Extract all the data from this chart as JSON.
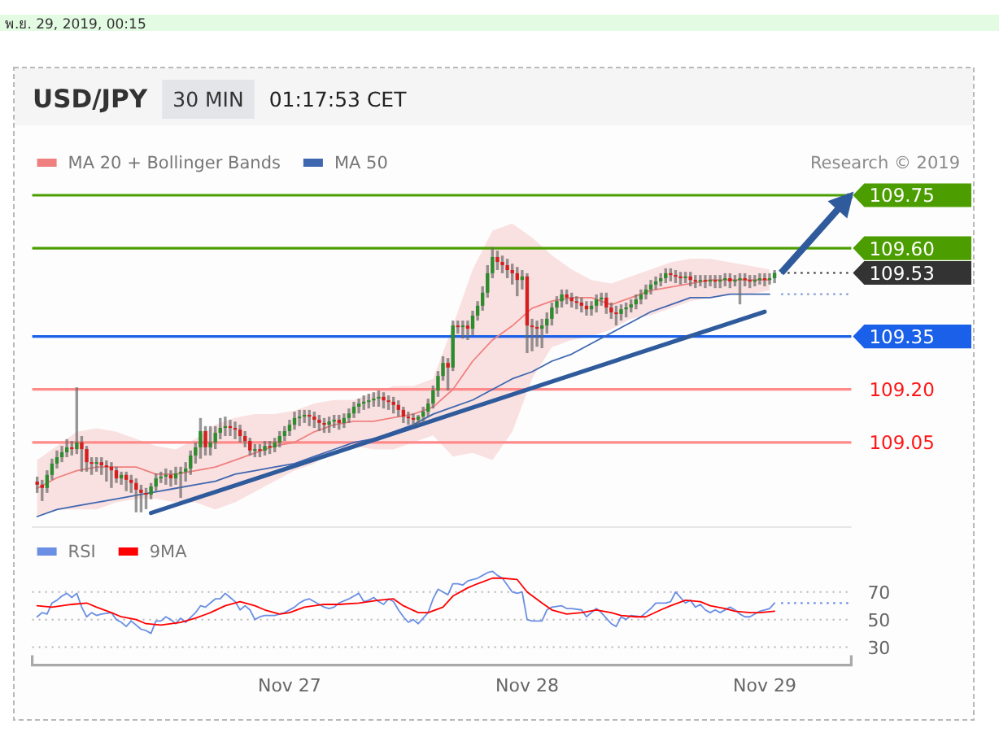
{
  "chart_data": [
    {
      "type": "candlestick",
      "title": "USD/JPY",
      "subtitle": "30 MIN",
      "annotations": [
        "01:17:53 CET",
        "Research © 2019",
        "พ.ย. 29, 2019, 00:15"
      ],
      "x": [
        "2019-11-25T22:30",
        "2019-11-25T23:00",
        "2019-11-25T23:30",
        "2019-11-26T00:00",
        "2019-11-26T00:30",
        "2019-11-26T01:00",
        "2019-11-26T01:30",
        "2019-11-26T02:00",
        "2019-11-26T02:30",
        "2019-11-26T03:00",
        "2019-11-26T03:30",
        "2019-11-26T04:00",
        "2019-11-26T04:30",
        "2019-11-26T05:00",
        "2019-11-26T05:30",
        "2019-11-26T06:00",
        "2019-11-26T06:30",
        "2019-11-26T07:00",
        "2019-11-26T07:30",
        "2019-11-26T08:00",
        "2019-11-26T08:30",
        "2019-11-26T09:00",
        "2019-11-26T09:30",
        "2019-11-26T10:00",
        "2019-11-26T10:30",
        "2019-11-26T11:00",
        "2019-11-26T11:30",
        "2019-11-26T12:00",
        "2019-11-26T12:30",
        "2019-11-26T13:00",
        "2019-11-26T13:30",
        "2019-11-26T14:00",
        "2019-11-26T14:30",
        "2019-11-26T15:00",
        "2019-11-26T15:30",
        "2019-11-26T16:00",
        "2019-11-26T16:30",
        "2019-11-26T17:00",
        "2019-11-26T17:30",
        "2019-11-26T18:00",
        "2019-11-26T18:30",
        "2019-11-26T19:00",
        "2019-11-26T19:30",
        "2019-11-26T20:00",
        "2019-11-26T20:30",
        "2019-11-26T21:00",
        "2019-11-26T21:30",
        "2019-11-26T22:00",
        "2019-11-26T22:30",
        "2019-11-26T23:00",
        "2019-11-26T23:30",
        "2019-11-27T00:00",
        "2019-11-27T00:30",
        "2019-11-27T01:00",
        "2019-11-27T01:30",
        "2019-11-27T02:00",
        "2019-11-27T02:30",
        "2019-11-27T03:00",
        "2019-11-27T03:30",
        "2019-11-27T04:00",
        "2019-11-27T04:30",
        "2019-11-27T05:00",
        "2019-11-27T05:30",
        "2019-11-27T06:00",
        "2019-11-27T06:30",
        "2019-11-27T07:00",
        "2019-11-27T07:30",
        "2019-11-27T08:00",
        "2019-11-27T08:30",
        "2019-11-27T09:00",
        "2019-11-27T09:30",
        "2019-11-27T10:00",
        "2019-11-27T10:30",
        "2019-11-27T11:00",
        "2019-11-27T11:30",
        "2019-11-27T12:00",
        "2019-11-27T12:30",
        "2019-11-27T13:00",
        "2019-11-27T13:30",
        "2019-11-27T14:00",
        "2019-11-27T14:30",
        "2019-11-27T15:00",
        "2019-11-27T15:30",
        "2019-11-27T16:00",
        "2019-11-27T16:30",
        "2019-11-27T17:00",
        "2019-11-27T17:30",
        "2019-11-27T18:00",
        "2019-11-27T18:30",
        "2019-11-27T19:00",
        "2019-11-27T19:30",
        "2019-11-27T20:00",
        "2019-11-27T20:30",
        "2019-11-27T21:00",
        "2019-11-27T21:30",
        "2019-11-27T22:00",
        "2019-11-27T22:30",
        "2019-11-27T23:00",
        "2019-11-27T23:30",
        "2019-11-28T00:00",
        "2019-11-28T00:30",
        "2019-11-28T01:00",
        "2019-11-28T01:30",
        "2019-11-28T02:00",
        "2019-11-28T02:30",
        "2019-11-28T03:00",
        "2019-11-28T03:30",
        "2019-11-28T04:00",
        "2019-11-28T04:30",
        "2019-11-28T05:00",
        "2019-11-28T05:30",
        "2019-11-28T06:00",
        "2019-11-28T06:30",
        "2019-11-28T07:00",
        "2019-11-28T07:30",
        "2019-11-28T08:00",
        "2019-11-28T08:30",
        "2019-11-28T09:00",
        "2019-11-28T09:30",
        "2019-11-28T10:00",
        "2019-11-28T10:30",
        "2019-11-28T11:00",
        "2019-11-28T11:30",
        "2019-11-28T12:00",
        "2019-11-28T12:30",
        "2019-11-28T13:00",
        "2019-11-28T13:30",
        "2019-11-28T14:00",
        "2019-11-28T14:30",
        "2019-11-28T15:00",
        "2019-11-28T15:30",
        "2019-11-28T16:00",
        "2019-11-28T16:30",
        "2019-11-28T17:00",
        "2019-11-28T17:30",
        "2019-11-28T18:00",
        "2019-11-28T18:30",
        "2019-11-28T19:00",
        "2019-11-28T19:30",
        "2019-11-28T20:00",
        "2019-11-28T20:30",
        "2019-11-28T21:00",
        "2019-11-28T21:30",
        "2019-11-28T22:00",
        "2019-11-28T22:30",
        "2019-11-28T23:00",
        "2019-11-28T23:30",
        "2019-11-29T00:00",
        "2019-11-29T00:30",
        "2019-11-29T01:00"
      ],
      "ohlc": [
        [
          108.939,
          108.953,
          108.907,
          108.93
        ],
        [
          108.93,
          108.944,
          108.884,
          108.921
        ],
        [
          108.921,
          108.971,
          108.907,
          108.958
        ],
        [
          108.958,
          109.004,
          108.944,
          108.99
        ],
        [
          108.99,
          109.027,
          108.976,
          109.008
        ],
        [
          109.008,
          109.04,
          108.994,
          109.022
        ],
        [
          109.022,
          109.059,
          109.008,
          109.036
        ],
        [
          109.036,
          109.054,
          109.013,
          109.031
        ],
        [
          109.031,
          109.206,
          109.017,
          109.05
        ],
        [
          109.05,
          109.068,
          108.967,
          109.031
        ],
        [
          109.031,
          109.04,
          108.967,
          108.994
        ],
        [
          108.994,
          109.008,
          108.958,
          108.99
        ],
        [
          108.99,
          109.008,
          108.967,
          108.994
        ],
        [
          108.994,
          109.008,
          108.958,
          108.985
        ],
        [
          108.985,
          108.999,
          108.939,
          108.981
        ],
        [
          108.981,
          108.994,
          108.921,
          108.971
        ],
        [
          108.971,
          108.981,
          108.935,
          108.948
        ],
        [
          108.948,
          108.967,
          108.93,
          108.958
        ],
        [
          108.958,
          108.967,
          108.912,
          108.944
        ],
        [
          108.944,
          108.958,
          108.907,
          108.935
        ],
        [
          108.935,
          108.948,
          108.852,
          108.916
        ],
        [
          108.916,
          108.93,
          108.852,
          108.907
        ],
        [
          108.907,
          108.921,
          108.861,
          108.902
        ],
        [
          108.902,
          108.935,
          108.889,
          108.925
        ],
        [
          108.925,
          108.962,
          108.912,
          108.948
        ],
        [
          108.948,
          108.967,
          108.935,
          108.953
        ],
        [
          108.953,
          108.976,
          108.93,
          108.958
        ],
        [
          108.958,
          108.971,
          108.925,
          108.948
        ],
        [
          108.948,
          108.981,
          108.93,
          108.962
        ],
        [
          108.962,
          108.981,
          108.893,
          108.967
        ],
        [
          108.967,
          108.994,
          108.939,
          108.976
        ],
        [
          108.976,
          109.027,
          108.958,
          109.013
        ],
        [
          109.013,
          109.05,
          108.99,
          109.036
        ],
        [
          109.036,
          109.119,
          109.004,
          109.082
        ],
        [
          109.082,
          109.096,
          109.013,
          109.036
        ],
        [
          109.036,
          109.096,
          109.013,
          109.05
        ],
        [
          109.05,
          109.096,
          109.031,
          109.077
        ],
        [
          109.077,
          109.119,
          109.059,
          109.091
        ],
        [
          109.091,
          109.123,
          109.068,
          109.096
        ],
        [
          109.096,
          109.114,
          109.068,
          109.091
        ],
        [
          109.091,
          109.109,
          109.059,
          109.086
        ],
        [
          109.086,
          109.1,
          109.05,
          109.068
        ],
        [
          109.068,
          109.082,
          109.036,
          109.054
        ],
        [
          109.054,
          109.063,
          109.013,
          109.027
        ],
        [
          109.027,
          109.045,
          109.008,
          109.031
        ],
        [
          109.031,
          109.045,
          109.008,
          109.027
        ],
        [
          109.027,
          109.054,
          109.013,
          109.04
        ],
        [
          109.04,
          109.054,
          109.017,
          109.036
        ],
        [
          109.036,
          109.063,
          109.022,
          109.05
        ],
        [
          109.05,
          109.082,
          109.036,
          109.068
        ],
        [
          109.068,
          109.096,
          109.054,
          109.082
        ],
        [
          109.082,
          109.114,
          109.068,
          109.1
        ],
        [
          109.1,
          109.137,
          109.086,
          109.119
        ],
        [
          109.119,
          109.142,
          109.096,
          109.123
        ],
        [
          109.123,
          109.142,
          109.105,
          109.128
        ],
        [
          109.128,
          109.142,
          109.096,
          109.123
        ],
        [
          109.123,
          109.137,
          109.091,
          109.114
        ],
        [
          109.114,
          109.128,
          109.082,
          109.105
        ],
        [
          109.105,
          109.119,
          109.077,
          109.1
        ],
        [
          109.1,
          109.123,
          109.077,
          109.109
        ],
        [
          109.109,
          109.128,
          109.091,
          109.114
        ],
        [
          109.114,
          109.128,
          109.086,
          109.105
        ],
        [
          109.105,
          109.132,
          109.091,
          109.119
        ],
        [
          109.119,
          109.146,
          109.105,
          109.132
        ],
        [
          109.132,
          109.165,
          109.119,
          109.151
        ],
        [
          109.151,
          109.174,
          109.132,
          109.16
        ],
        [
          109.16,
          109.183,
          109.142,
          109.165
        ],
        [
          109.165,
          109.188,
          109.146,
          109.169
        ],
        [
          109.169,
          109.192,
          109.151,
          109.174
        ],
        [
          109.174,
          109.197,
          109.151,
          109.179
        ],
        [
          109.179,
          109.192,
          109.146,
          109.169
        ],
        [
          109.169,
          109.183,
          109.142,
          109.165
        ],
        [
          109.165,
          109.179,
          109.132,
          109.156
        ],
        [
          109.156,
          109.169,
          109.123,
          109.142
        ],
        [
          109.142,
          109.151,
          109.105,
          109.123
        ],
        [
          109.123,
          109.137,
          109.1,
          109.119
        ],
        [
          109.119,
          109.132,
          109.096,
          109.114
        ],
        [
          109.114,
          109.128,
          109.1,
          109.123
        ],
        [
          109.123,
          109.151,
          109.109,
          109.137
        ],
        [
          109.137,
          109.174,
          109.123,
          109.16
        ],
        [
          109.16,
          109.211,
          109.146,
          109.197
        ],
        [
          109.197,
          109.252,
          109.179,
          109.238
        ],
        [
          109.238,
          109.294,
          109.225,
          109.275
        ],
        [
          109.275,
          109.289,
          109.197,
          109.262
        ],
        [
          109.262,
          109.395,
          109.252,
          109.381
        ],
        [
          109.381,
          109.395,
          109.358,
          109.377
        ],
        [
          109.377,
          109.395,
          109.344,
          109.381
        ],
        [
          109.381,
          109.395,
          109.34,
          109.372
        ],
        [
          109.372,
          109.423,
          109.354,
          109.409
        ],
        [
          109.409,
          109.45,
          109.395,
          109.437
        ],
        [
          109.437,
          109.492,
          109.423,
          109.474
        ],
        [
          109.474,
          109.552,
          109.46,
          109.529
        ],
        [
          109.529,
          109.603,
          109.515,
          109.575
        ],
        [
          109.575,
          109.593,
          109.538,
          109.561
        ],
        [
          109.561,
          109.579,
          109.529,
          109.552
        ],
        [
          109.552,
          109.57,
          109.515,
          109.538
        ],
        [
          109.538,
          109.556,
          109.497,
          109.529
        ],
        [
          109.529,
          109.547,
          109.464,
          109.51
        ],
        [
          109.51,
          109.538,
          109.483,
          109.52
        ],
        [
          109.52,
          109.529,
          109.303,
          109.381
        ],
        [
          109.381,
          109.4,
          109.308,
          109.377
        ],
        [
          109.377,
          109.395,
          109.321,
          109.372
        ],
        [
          109.372,
          109.4,
          109.317,
          109.381
        ],
        [
          109.381,
          109.418,
          109.358,
          109.4
        ],
        [
          109.4,
          109.446,
          109.381,
          109.432
        ],
        [
          109.432,
          109.464,
          109.414,
          109.45
        ],
        [
          109.45,
          109.483,
          109.432,
          109.469
        ],
        [
          109.469,
          109.483,
          109.441,
          109.46
        ],
        [
          109.46,
          109.474,
          109.432,
          109.45
        ],
        [
          109.45,
          109.464,
          109.427,
          109.446
        ],
        [
          109.446,
          109.46,
          109.418,
          109.437
        ],
        [
          109.437,
          109.45,
          109.409,
          109.427
        ],
        [
          109.427,
          109.45,
          109.409,
          109.437
        ],
        [
          109.437,
          109.469,
          109.418,
          109.455
        ],
        [
          109.455,
          109.474,
          109.437,
          109.46
        ],
        [
          109.46,
          109.474,
          109.414,
          109.432
        ],
        [
          109.432,
          109.446,
          109.4,
          109.418
        ],
        [
          109.418,
          109.437,
          109.381,
          109.414
        ],
        [
          109.414,
          109.441,
          109.395,
          109.427
        ],
        [
          109.427,
          109.446,
          109.404,
          109.432
        ],
        [
          109.432,
          109.455,
          109.418,
          109.441
        ],
        [
          109.441,
          109.469,
          109.427,
          109.455
        ],
        [
          109.455,
          109.483,
          109.441,
          109.469
        ],
        [
          109.469,
          109.497,
          109.455,
          109.483
        ],
        [
          109.483,
          109.51,
          109.469,
          109.497
        ],
        [
          109.497,
          109.52,
          109.483,
          109.506
        ],
        [
          109.506,
          109.529,
          109.492,
          109.515
        ],
        [
          109.515,
          109.543,
          109.501,
          109.529
        ],
        [
          109.529,
          109.543,
          109.506,
          109.524
        ],
        [
          109.524,
          109.538,
          109.501,
          109.52
        ],
        [
          109.52,
          109.533,
          109.497,
          109.515
        ],
        [
          109.515,
          109.533,
          109.501,
          109.52
        ],
        [
          109.52,
          109.533,
          109.492,
          109.51
        ],
        [
          109.51,
          109.524,
          109.487,
          109.506
        ],
        [
          109.506,
          109.524,
          109.492,
          109.51
        ],
        [
          109.51,
          109.524,
          109.487,
          109.506
        ],
        [
          109.506,
          109.524,
          109.492,
          109.51
        ],
        [
          109.51,
          109.524,
          109.487,
          109.506
        ],
        [
          109.506,
          109.524,
          109.487,
          109.51
        ],
        [
          109.51,
          109.529,
          109.492,
          109.515
        ],
        [
          109.515,
          109.529,
          109.487,
          109.506
        ],
        [
          109.506,
          109.524,
          109.492,
          109.51
        ],
        [
          109.51,
          109.529,
          109.441,
          109.515
        ],
        [
          109.515,
          109.529,
          109.492,
          109.51
        ],
        [
          109.51,
          109.524,
          109.487,
          109.506
        ],
        [
          109.506,
          109.524,
          109.492,
          109.51
        ],
        [
          109.51,
          109.529,
          109.497,
          109.515
        ],
        [
          109.515,
          109.529,
          109.492,
          109.51
        ],
        [
          109.51,
          109.529,
          109.497,
          109.515
        ],
        [
          109.515,
          109.538,
          109.501,
          109.53
        ]
      ],
      "xlim": [
        "2019-11-25T22:00",
        "2019-11-29T08:45"
      ],
      "ylim": [
        108.81,
        109.75
      ],
      "series": [
        {
          "type": "line",
          "name": "MA 20 + Bollinger Bands",
          "color": "#f08080",
          "x": [
            "2019-11-25T22:30",
            "2019-11-26T00:30",
            "2019-11-26T02:30",
            "2019-11-26T04:30",
            "2019-11-26T06:30",
            "2019-11-26T08:30",
            "2019-11-26T10:30",
            "2019-11-26T12:30",
            "2019-11-26T14:30",
            "2019-11-26T16:30",
            "2019-11-26T18:30",
            "2019-11-26T20:30",
            "2019-11-26T22:30",
            "2019-11-27T00:30",
            "2019-11-27T02:30",
            "2019-11-27T04:30",
            "2019-11-27T06:30",
            "2019-11-27T08:30",
            "2019-11-27T10:30",
            "2019-11-27T12:30",
            "2019-11-27T14:30",
            "2019-11-27T16:30",
            "2019-11-27T18:30",
            "2019-11-27T20:30",
            "2019-11-27T22:30",
            "2019-11-28T00:30",
            "2019-11-28T02:30",
            "2019-11-28T04:30",
            "2019-11-28T06:30",
            "2019-11-28T08:30",
            "2019-11-28T10:30",
            "2019-11-28T12:30",
            "2019-11-28T14:30",
            "2019-11-28T16:30",
            "2019-11-28T18:30",
            "2019-11-28T20:30",
            "2019-11-28T22:30",
            "2019-11-29T00:30"
          ],
          "values": [
            108.92,
            108.95,
            108.97,
            108.98,
            108.98,
            108.98,
            108.96,
            108.96,
            108.97,
            108.98,
            109.0,
            109.02,
            109.04,
            109.05,
            109.08,
            109.1,
            109.11,
            109.11,
            109.12,
            109.13,
            109.15,
            109.2,
            109.28,
            109.34,
            109.38,
            109.43,
            109.45,
            109.46,
            109.46,
            109.44,
            109.46,
            109.48,
            109.49,
            109.5,
            109.51,
            109.51,
            109.51,
            109.51
          ],
          "upper": [
            109.0,
            109.04,
            109.08,
            109.09,
            109.08,
            109.06,
            109.04,
            109.03,
            109.06,
            109.1,
            109.12,
            109.13,
            109.13,
            109.14,
            109.16,
            109.17,
            109.17,
            109.19,
            109.21,
            109.21,
            109.23,
            109.38,
            109.54,
            109.65,
            109.67,
            109.63,
            109.58,
            109.54,
            109.51,
            109.5,
            109.52,
            109.54,
            109.56,
            109.57,
            109.57,
            109.56,
            109.55,
            109.54
          ],
          "lower": [
            108.84,
            108.86,
            108.86,
            108.86,
            108.88,
            108.89,
            108.89,
            108.88,
            108.88,
            108.86,
            108.88,
            108.91,
            108.94,
            108.97,
            108.99,
            109.03,
            109.04,
            109.03,
            109.03,
            109.05,
            109.07,
            109.01,
            109.02,
            109.0,
            109.08,
            109.23,
            109.32,
            109.34,
            109.35,
            109.37,
            109.4,
            109.41,
            109.43,
            109.45,
            109.46,
            109.47,
            109.47,
            109.48
          ]
        },
        {
          "type": "line",
          "name": "MA 50",
          "color": "#3f67b0",
          "x": [
            "2019-11-25T22:30",
            "2019-11-26T00:30",
            "2019-11-26T02:30",
            "2019-11-26T04:30",
            "2019-11-26T06:30",
            "2019-11-26T08:30",
            "2019-11-26T10:30",
            "2019-11-26T12:30",
            "2019-11-26T14:30",
            "2019-11-26T16:30",
            "2019-11-26T18:30",
            "2019-11-26T20:30",
            "2019-11-26T22:30",
            "2019-11-27T00:30",
            "2019-11-27T02:30",
            "2019-11-27T04:30",
            "2019-11-27T06:30",
            "2019-11-27T08:30",
            "2019-11-27T10:30",
            "2019-11-27T12:30",
            "2019-11-27T14:30",
            "2019-11-27T16:30",
            "2019-11-27T18:30",
            "2019-11-27T20:30",
            "2019-11-27T22:30",
            "2019-11-28T00:30",
            "2019-11-28T02:30",
            "2019-11-28T04:30",
            "2019-11-28T06:30",
            "2019-11-28T08:30",
            "2019-11-28T10:30",
            "2019-11-28T12:30",
            "2019-11-28T14:30",
            "2019-11-28T16:30",
            "2019-11-28T18:30",
            "2019-11-28T20:30",
            "2019-11-28T22:30",
            "2019-11-29T00:30"
          ],
          "values": [
            108.84,
            108.86,
            108.87,
            108.88,
            108.89,
            108.9,
            108.91,
            108.92,
            108.93,
            108.94,
            108.96,
            108.97,
            108.98,
            108.99,
            109.01,
            109.03,
            109.05,
            109.06,
            109.08,
            109.1,
            109.13,
            109.15,
            109.17,
            109.2,
            109.23,
            109.25,
            109.28,
            109.3,
            109.33,
            109.36,
            109.39,
            109.42,
            109.44,
            109.46,
            109.46,
            109.47,
            109.47,
            109.47
          ]
        },
        {
          "type": "line",
          "color": "#2f5b9c",
          "x": [
            "2019-11-26T10:00",
            "2019-11-29T00:00"
          ],
          "values": [
            108.85,
            109.42
          ]
        },
        {
          "type": "line",
          "color": "#2f5b9c",
          "x": [
            "2019-11-29T01:40",
            "2019-11-29T08:40"
          ],
          "values": [
            109.53,
            109.75
          ]
        }
      ],
      "ref_lines": [
        {
          "axis": "y",
          "value": 109.75,
          "label": "109.75",
          "color": "#4c9e00"
        },
        {
          "axis": "y",
          "value": 109.6,
          "label": "109.60",
          "color": "#4c9e00"
        },
        {
          "axis": "y",
          "value": 109.53,
          "label": "109.53",
          "color": "#333333",
          "line_style": "dotted"
        },
        {
          "axis": "y",
          "value": 109.47,
          "color": "#7f9bd6",
          "line_style": "dotted"
        },
        {
          "axis": "y",
          "value": 109.35,
          "label": "109.35",
          "color": "#1a60e8"
        },
        {
          "axis": "y",
          "value": 109.2,
          "label": "109.20",
          "color": "#ff8a8a"
        },
        {
          "axis": "y",
          "value": 109.05,
          "label": "109.05",
          "color": "#ff8a8a"
        }
      ],
      "legend": "top left"
    },
    {
      "type": "line",
      "series": [
        {
          "name": "RSI",
          "color": "#6b8fe3",
          "x": [
            "2019-11-25T22:30",
            "2019-11-25T23:00",
            "2019-11-25T23:30",
            "2019-11-26T00:00",
            "2019-11-26T00:30",
            "2019-11-26T01:00",
            "2019-11-26T01:30",
            "2019-11-26T02:00",
            "2019-11-26T02:30",
            "2019-11-26T03:00",
            "2019-11-26T03:30",
            "2019-11-26T04:00",
            "2019-11-26T04:30",
            "2019-11-26T05:00",
            "2019-11-26T06:00",
            "2019-11-26T06:30",
            "2019-11-26T07:00",
            "2019-11-26T07:30",
            "2019-11-26T08:00",
            "2019-11-26T09:00",
            "2019-11-26T09:30",
            "2019-11-26T10:00",
            "2019-11-26T10:30",
            "2019-11-26T11:00",
            "2019-11-26T11:30",
            "2019-11-26T12:00",
            "2019-11-26T12:30",
            "2019-11-26T13:00",
            "2019-11-26T13:30",
            "2019-11-26T14:30",
            "2019-11-26T15:00",
            "2019-11-26T15:30",
            "2019-11-26T16:00",
            "2019-11-26T16:30",
            "2019-11-26T17:00",
            "2019-11-26T17:30",
            "2019-11-26T18:00",
            "2019-11-26T18:30",
            "2019-11-26T19:00",
            "2019-11-26T19:30",
            "2019-11-26T20:00",
            "2019-11-26T20:30",
            "2019-11-26T21:00",
            "2019-11-26T21:30",
            "2019-11-26T22:30",
            "2019-11-26T23:00",
            "2019-11-26T23:30",
            "2019-11-27T00:30",
            "2019-11-27T01:00",
            "2019-11-27T01:30",
            "2019-11-27T02:00",
            "2019-11-27T03:00",
            "2019-11-27T03:30",
            "2019-11-27T04:00",
            "2019-11-27T04:30",
            "2019-11-27T05:00",
            "2019-11-27T06:00",
            "2019-11-27T06:30",
            "2019-11-27T07:00",
            "2019-11-27T07:30",
            "2019-11-27T08:00",
            "2019-11-27T08:30",
            "2019-11-27T09:00",
            "2019-11-27T09:30",
            "2019-11-27T10:00",
            "2019-11-27T10:30",
            "2019-11-27T11:00",
            "2019-11-27T11:30",
            "2019-11-27T12:00",
            "2019-11-27T12:30",
            "2019-11-27T13:00",
            "2019-11-27T13:30",
            "2019-11-27T14:00",
            "2019-11-27T14:30",
            "2019-11-27T15:00",
            "2019-11-27T15:30",
            "2019-11-27T16:00",
            "2019-11-27T16:30",
            "2019-11-27T17:00",
            "2019-11-27T17:30",
            "2019-11-27T18:00",
            "2019-11-27T19:00",
            "2019-11-27T19:30",
            "2019-11-27T20:00",
            "2019-11-27T20:30",
            "2019-11-27T21:00",
            "2019-11-27T21:30",
            "2019-11-27T22:00",
            "2019-11-27T22:30",
            "2019-11-27T23:00",
            "2019-11-27T23:30",
            "2019-11-28T00:00",
            "2019-11-28T00:30",
            "2019-11-28T01:00",
            "2019-11-28T01:30",
            "2019-11-28T02:00",
            "2019-11-28T02:30",
            "2019-11-28T03:30",
            "2019-11-28T04:00",
            "2019-11-28T04:30",
            "2019-11-28T05:30",
            "2019-11-28T06:00",
            "2019-11-28T06:30",
            "2019-11-28T07:00",
            "2019-11-28T07:30",
            "2019-11-28T08:30",
            "2019-11-28T09:00",
            "2019-11-28T09:30",
            "2019-11-28T10:00",
            "2019-11-28T10:30",
            "2019-11-28T11:30",
            "2019-11-28T12:00",
            "2019-11-28T12:30",
            "2019-11-28T13:00",
            "2019-11-28T14:00",
            "2019-11-28T14:30",
            "2019-11-28T15:00",
            "2019-11-28T15:30",
            "2019-11-28T16:00",
            "2019-11-28T16:30",
            "2019-11-28T17:00",
            "2019-11-28T17:30",
            "2019-11-28T18:00",
            "2019-11-28T18:30",
            "2019-11-28T19:00",
            "2019-11-28T19:30",
            "2019-11-28T20:30",
            "2019-11-28T21:00",
            "2019-11-28T21:30",
            "2019-11-28T22:00",
            "2019-11-28T22:30",
            "2019-11-28T23:30",
            "2019-11-29T00:00",
            "2019-11-29T00:30",
            "2019-11-29T01:00"
          ],
          "values": [
            52,
            55,
            54,
            62,
            64,
            67,
            69,
            66,
            69,
            59,
            52,
            55,
            53,
            54,
            55,
            50,
            48,
            45,
            49,
            43,
            42,
            40,
            49,
            49,
            52,
            50,
            47,
            51,
            48,
            55,
            60,
            59,
            62,
            65,
            65,
            69,
            66,
            63,
            57,
            60,
            57,
            50,
            52,
            53,
            53,
            54,
            55,
            59,
            62,
            64,
            65,
            61,
            59,
            58,
            59,
            62,
            65,
            67,
            69,
            63,
            64,
            66,
            63,
            61,
            65,
            63,
            57,
            52,
            48,
            50,
            47,
            51,
            55,
            65,
            72,
            70,
            68,
            76,
            76,
            75,
            78,
            80,
            82,
            84,
            85,
            82,
            80,
            75,
            70,
            69,
            70,
            50,
            49,
            49,
            49,
            57,
            59,
            60,
            58,
            58,
            57,
            52,
            55,
            58,
            55,
            47,
            45,
            52,
            50,
            53,
            52,
            55,
            58,
            62,
            62,
            63,
            70,
            66,
            62,
            64,
            59,
            61,
            57,
            55,
            57,
            55,
            59,
            57,
            54,
            52,
            52,
            56,
            57,
            58,
            62
          ]
        },
        {
          "name": "9MA",
          "color": "#ff0000",
          "x": [
            "2019-11-25T22:30",
            "2019-11-26T00:00",
            "2019-11-26T02:00",
            "2019-11-26T03:30",
            "2019-11-26T04:30",
            "2019-11-26T06:00",
            "2019-11-26T07:00",
            "2019-11-26T08:30",
            "2019-11-26T09:30",
            "2019-11-26T11:00",
            "2019-11-26T13:00",
            "2019-11-26T14:30",
            "2019-11-26T16:00",
            "2019-11-26T17:30",
            "2019-11-26T19:00",
            "2019-11-26T20:30",
            "2019-11-26T21:30",
            "2019-11-26T23:00",
            "2019-11-27T00:00",
            "2019-11-27T01:30",
            "2019-11-27T03:30",
            "2019-11-27T05:00",
            "2019-11-27T07:00",
            "2019-11-27T09:00",
            "2019-11-27T10:30",
            "2019-11-27T11:30",
            "2019-11-27T13:00",
            "2019-11-27T14:00",
            "2019-11-27T15:30",
            "2019-11-27T16:30",
            "2019-11-27T18:00",
            "2019-11-27T19:00",
            "2019-11-27T20:30",
            "2019-11-27T21:30",
            "2019-11-27T23:00",
            "2019-11-28T00:00",
            "2019-11-28T01:30",
            "2019-11-28T02:30",
            "2019-11-28T04:00",
            "2019-11-28T05:30",
            "2019-11-28T07:00",
            "2019-11-28T08:30",
            "2019-11-28T09:30",
            "2019-11-28T11:00",
            "2019-11-28T12:00",
            "2019-11-28T13:30",
            "2019-11-28T14:30",
            "2019-11-28T16:00",
            "2019-11-28T17:30",
            "2019-11-28T18:30",
            "2019-11-28T20:00",
            "2019-11-28T21:00",
            "2019-11-28T22:30",
            "2019-11-28T23:30",
            "2019-11-29T01:00"
          ],
          "values": [
            60,
            59,
            61,
            62,
            59,
            55,
            52,
            50,
            47,
            46,
            48,
            51,
            55,
            60,
            63,
            60,
            57,
            54,
            55,
            59,
            61,
            61,
            62,
            64,
            65,
            60,
            55,
            55,
            59,
            67,
            73,
            76,
            80,
            80,
            79,
            70,
            62,
            57,
            54,
            55,
            57,
            55,
            53,
            52,
            52,
            57,
            60,
            64,
            63,
            60,
            58,
            56,
            55,
            55,
            56
          ]
        }
      ],
      "xlim": [
        "2019-11-25T22:00",
        "2019-11-29T08:45"
      ],
      "xticks": [
        {
          "value": "2019-11-27",
          "label": "Nov 27"
        },
        {
          "value": "2019-11-28",
          "label": "Nov 28"
        },
        {
          "value": "2019-11-29",
          "label": "Nov 29"
        }
      ],
      "ylim": [
        17,
        117
      ],
      "yticks": [
        30,
        50,
        70
      ],
      "grid": "y",
      "ref_lines": [
        {
          "axis": "y",
          "value": 62,
          "color": "#6b8fe3",
          "line_style": "dotted"
        }
      ],
      "legend": "top left"
    }
  ]
}
